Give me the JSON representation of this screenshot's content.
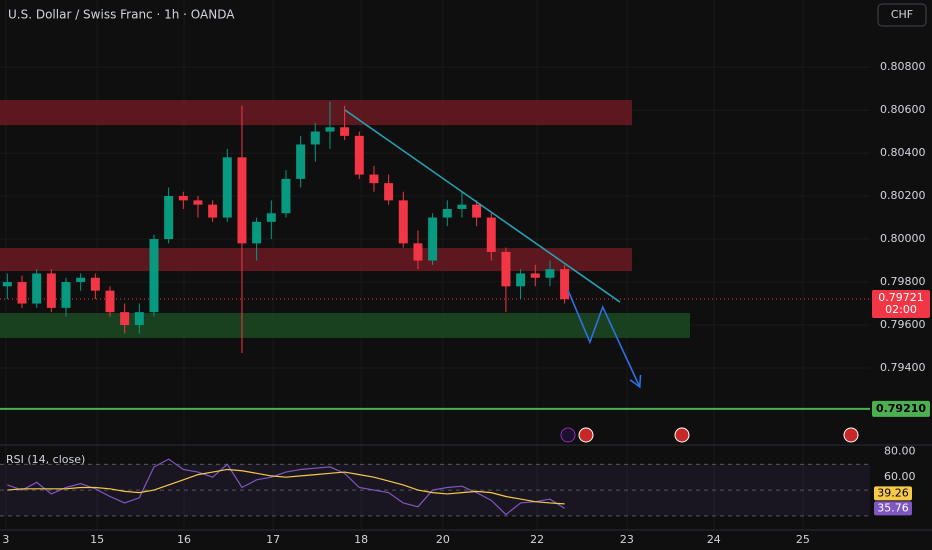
{
  "toolbar": {
    "currency": "CHF"
  },
  "chart_data": [
    {
      "type": "candlestick",
      "title": "U.S. Dollar / Swiss Franc · 1h · OANDA",
      "up_color": "#089981",
      "down_color": "#f23645",
      "x": [
        2,
        6,
        10,
        14,
        18,
        22,
        26,
        30,
        34,
        38,
        42,
        46,
        50,
        54,
        58,
        62,
        66,
        70,
        74,
        78,
        82,
        86,
        90,
        94,
        98,
        102,
        106,
        110,
        114,
        118,
        122,
        126,
        130,
        134,
        138,
        142,
        146,
        150,
        154
      ],
      "open": [
        0.7978,
        0.798,
        0.797,
        0.7984,
        0.7968,
        0.798,
        0.7982,
        0.7976,
        0.7966,
        0.796,
        0.7966,
        0.8,
        0.802,
        0.8018,
        0.8016,
        0.801,
        0.8038,
        0.7998,
        0.8008,
        0.8012,
        0.8028,
        0.8044,
        0.805,
        0.8052,
        0.8048,
        0.803,
        0.8026,
        0.8018,
        0.7998,
        0.799,
        0.801,
        0.8014,
        0.8016,
        0.801,
        0.7994,
        0.7978,
        0.7984,
        0.7982,
        0.7986
      ],
      "high": [
        0.7984,
        0.7983,
        0.7986,
        0.7986,
        0.7982,
        0.7984,
        0.7984,
        0.7978,
        0.797,
        0.797,
        0.8002,
        0.8024,
        0.8022,
        0.802,
        0.8018,
        0.8042,
        0.8062,
        0.801,
        0.8018,
        0.8032,
        0.8048,
        0.8054,
        0.8064,
        0.8062,
        0.805,
        0.8034,
        0.803,
        0.8022,
        0.8004,
        0.8012,
        0.8018,
        0.8022,
        0.8018,
        0.8012,
        0.7996,
        0.7986,
        0.7988,
        0.799,
        0.7988
      ],
      "low": [
        0.7972,
        0.7968,
        0.7968,
        0.7966,
        0.7964,
        0.7976,
        0.7972,
        0.7964,
        0.7956,
        0.7956,
        0.7964,
        0.7998,
        0.8014,
        0.801,
        0.8008,
        0.8008,
        0.7947,
        0.799,
        0.8,
        0.801,
        0.8024,
        0.8036,
        0.8042,
        0.8046,
        0.8028,
        0.8022,
        0.8016,
        0.7996,
        0.7986,
        0.7988,
        0.8006,
        0.801,
        0.8006,
        0.799,
        0.7966,
        0.7972,
        0.7978,
        0.7978,
        0.797
      ],
      "close": [
        0.798,
        0.797,
        0.7984,
        0.7968,
        0.798,
        0.7982,
        0.7976,
        0.7966,
        0.796,
        0.7966,
        0.8,
        0.802,
        0.8018,
        0.8016,
        0.801,
        0.8038,
        0.7998,
        0.8008,
        0.8012,
        0.8028,
        0.8044,
        0.805,
        0.8052,
        0.8048,
        0.803,
        0.8026,
        0.8018,
        0.7998,
        0.799,
        0.801,
        0.8014,
        0.8016,
        0.801,
        0.7994,
        0.7978,
        0.7984,
        0.7982,
        0.7986,
        0.7972
      ],
      "xlim": [
        0,
        237.3
      ],
      "ylim": [
        0.79042,
        0.81112
      ],
      "xticks": [
        {
          "value": 1.6,
          "label": "3"
        },
        {
          "value": 26.5,
          "label": "15"
        },
        {
          "value": 50.2,
          "label": "16"
        },
        {
          "value": 74.5,
          "label": "17"
        },
        {
          "value": 98.5,
          "label": "18"
        },
        {
          "value": 120.8,
          "label": "20"
        },
        {
          "value": 146.5,
          "label": "22"
        },
        {
          "value": 171,
          "label": "23"
        },
        {
          "value": 194.7,
          "label": "24"
        },
        {
          "value": 219,
          "label": "25"
        }
      ],
      "yticks": [
        {
          "value": 0.808,
          "label": "0.80800"
        },
        {
          "value": 0.806,
          "label": "0.80600"
        },
        {
          "value": 0.804,
          "label": "0.80400"
        },
        {
          "value": 0.802,
          "label": "0.80200"
        },
        {
          "value": 0.8,
          "label": "0.80000"
        },
        {
          "value": 0.798,
          "label": "0.79800"
        },
        {
          "value": 0.796,
          "label": "0.79600"
        },
        {
          "value": 0.794,
          "label": "0.79400"
        }
      ],
      "zones": [
        {
          "x": [
            0,
            172.4
          ],
          "y": [
            0.80647,
            0.8053
          ],
          "color": "#6b1a22"
        },
        {
          "x": [
            0,
            172.4
          ],
          "y": [
            0.79958,
            0.79851
          ],
          "color": "#6b1a22"
        },
        {
          "x": [
            0,
            188.2
          ],
          "y": [
            0.79656,
            0.7954
          ],
          "color": "#1b4a22"
        }
      ],
      "lines": [
        {
          "x": [
            94.1,
            169.1
          ],
          "y": [
            0.806,
            0.79707
          ],
          "color": "#26a0b0"
        },
        {
          "x": [
            154.9,
            160.9,
            164.4,
            174.5
          ],
          "y": [
            0.79763,
            0.79521,
            0.79684,
            0.79312
          ],
          "color": "#2f6fe0",
          "arrow": true
        }
      ],
      "hlines": [
        {
          "value": 0.7921,
          "label": "0.79210",
          "color": "#4caf50"
        }
      ],
      "last_price": {
        "value": 0.79721,
        "label": "0.79721",
        "countdown": "02:00",
        "color": "#f23645"
      }
    },
    {
      "type": "line",
      "title": "RSI (14, close)",
      "ylim": [
        19,
        85
      ],
      "yticks": [
        {
          "value": 80,
          "label": "80.00"
        },
        {
          "value": 60,
          "label": "60.00"
        }
      ],
      "bands": [
        70,
        50,
        30
      ],
      "band_color": "#7e57c2",
      "series": [
        {
          "color": "#7e57c2",
          "label_color": "#7e57c2",
          "values": [
            54,
            50,
            56,
            47,
            52,
            55,
            51,
            45,
            40,
            44,
            68,
            74,
            66,
            64,
            60,
            70,
            52,
            58,
            60,
            64,
            66,
            67,
            68,
            63,
            52,
            50,
            48,
            40,
            37,
            50,
            52,
            53,
            48,
            42,
            31,
            40,
            41,
            43,
            35.76
          ]
        },
        {
          "color": "#f7c948",
          "label_color": "#f7c948",
          "values": [
            50,
            51,
            51,
            51,
            51,
            52,
            52,
            51,
            49,
            48,
            50,
            54,
            58,
            62,
            64,
            66,
            65,
            63,
            61,
            60,
            61,
            62,
            63,
            64,
            62,
            60,
            57,
            54,
            50,
            48,
            47,
            48,
            49,
            48,
            45,
            43,
            41,
            40,
            39.26
          ]
        }
      ]
    }
  ]
}
